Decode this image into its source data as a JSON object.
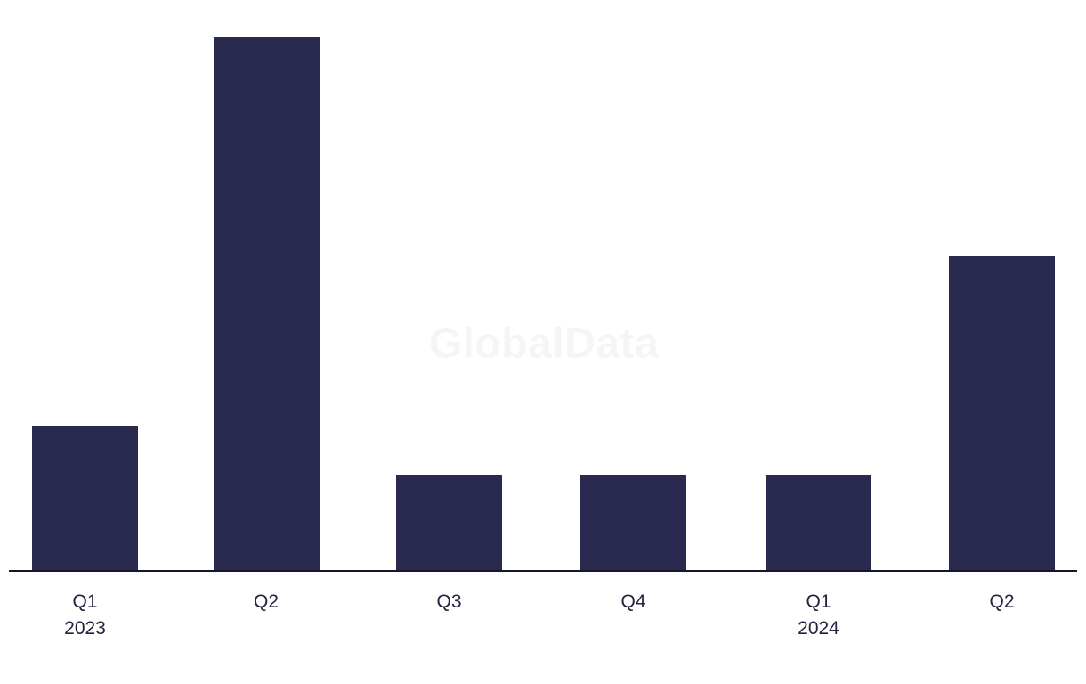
{
  "watermark": {
    "text": "GlobalData",
    "color": "#f5f5f5"
  },
  "chart_data": {
    "type": "bar",
    "categories": [
      {
        "quarter": "Q1",
        "year": "2023"
      },
      {
        "quarter": "Q2",
        "year": ""
      },
      {
        "quarter": "Q3",
        "year": ""
      },
      {
        "quarter": "Q4",
        "year": ""
      },
      {
        "quarter": "Q1",
        "year": "2024"
      },
      {
        "quarter": "Q2",
        "year": ""
      }
    ],
    "values": [
      27.2,
      100,
      18,
      18,
      18,
      59
    ],
    "units": "relative (tallest bar = 100; no y-axis, gridlines or data labels shown)",
    "title": "",
    "xlabel": "",
    "ylabel": "",
    "ylim": [
      0,
      107
    ],
    "grid": false,
    "legend": false,
    "bar_color": "#2a2950",
    "axis_color": "#15162b",
    "label_color": "#22233f"
  }
}
